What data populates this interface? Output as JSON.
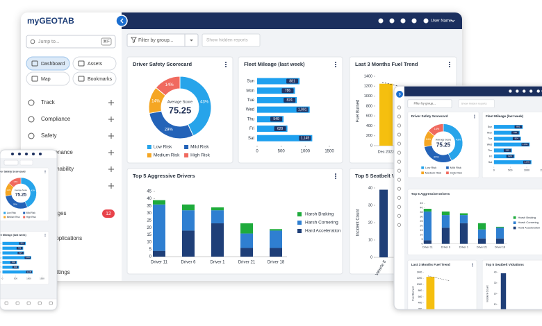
{
  "sidebar": {
    "logo": "myGEOTAB",
    "search": "Jump to...",
    "shortcut": "⌘F",
    "buttons": [
      "Dashboard",
      "Assets",
      "Map",
      "Bookmarks"
    ],
    "menu": [
      "Track",
      "Compliance",
      "Safety",
      "Maintenance",
      "Sustainability"
    ],
    "messages": {
      "label": "Messages",
      "count": 12
    },
    "links": [
      "Geotab Applications",
      "Support",
      "Admin Settings"
    ]
  },
  "topbar": {
    "user": "User Name"
  },
  "filters": {
    "group": "Filter by group...",
    "hidden": "Show hidden reports"
  },
  "charts": {
    "safety": {
      "type": "donut",
      "title": "Driver Safety Scorecard",
      "center_label": "Average Score",
      "center_value": 75.25,
      "categories": [
        "Low Risk",
        "Mild Risk",
        "Medium Risk",
        "High Risk"
      ],
      "colors": [
        "#27a4ea",
        "#2463b8",
        "#f5a623",
        "#f06a5f"
      ],
      "values": [
        43,
        29,
        14,
        14
      ],
      "value_labels": [
        "43%",
        "29%",
        "14%",
        "14%"
      ]
    },
    "mileage": {
      "type": "hbar",
      "title": "Fleet Mileage (last week)",
      "categories": [
        "Sun",
        "Mon",
        "Tue",
        "Wed",
        "Thu",
        "Fri",
        "Sat"
      ],
      "values": [
        881,
        786,
        824,
        1091,
        549,
        629,
        1145
      ],
      "value_labels": [
        "881",
        "786",
        "824",
        "1,091",
        "549",
        "629",
        "1,145"
      ],
      "color": "#1ea0ef",
      "xlim": [
        0,
        1500
      ],
      "xticks": [
        0,
        500,
        1000,
        1500
      ]
    },
    "fuel": {
      "type": "bar",
      "title": "Last 3 Months Fuel Trend",
      "y_label": "Fuel Burned",
      "categories": [
        "Dec 2022"
      ],
      "values": [
        1250
      ],
      "color": "#f5bf0f",
      "ylim": [
        0,
        1400
      ],
      "yticks": [
        0,
        200,
        400,
        600,
        800,
        1000,
        1200,
        1400
      ]
    },
    "aggressive": {
      "type": "stacked_bar",
      "title": "Top 5 Aggressive Drivers",
      "categories": [
        "Driver 11",
        "Driver 6",
        "Driver 1",
        "Driver 21",
        "Driver 18"
      ],
      "series": [
        {
          "name": "Hard Acceleration",
          "color": "#1f3f78",
          "values": [
            4,
            18,
            23,
            6,
            6
          ]
        },
        {
          "name": "Harsh Cornering",
          "color": "#2f7fd1",
          "values": [
            32,
            14,
            9,
            10,
            12
          ]
        },
        {
          "name": "Harsh Braking",
          "color": "#1eab3c",
          "values": [
            3,
            4,
            2,
            7,
            1
          ]
        }
      ],
      "ylim": [
        0,
        45
      ],
      "yticks": [
        0,
        5,
        10,
        15,
        20,
        25,
        30,
        35,
        40,
        45
      ]
    },
    "seatbelt": {
      "type": "bar",
      "title": "Top 5 Seatbelt Violations",
      "y_label": "Incident Count",
      "categories": [
        "Vehicle 8"
      ],
      "values": [
        39
      ],
      "color": "#1f3f78",
      "ylim": [
        0,
        40
      ],
      "yticks": [
        0,
        10,
        20,
        30,
        40
      ]
    }
  }
}
